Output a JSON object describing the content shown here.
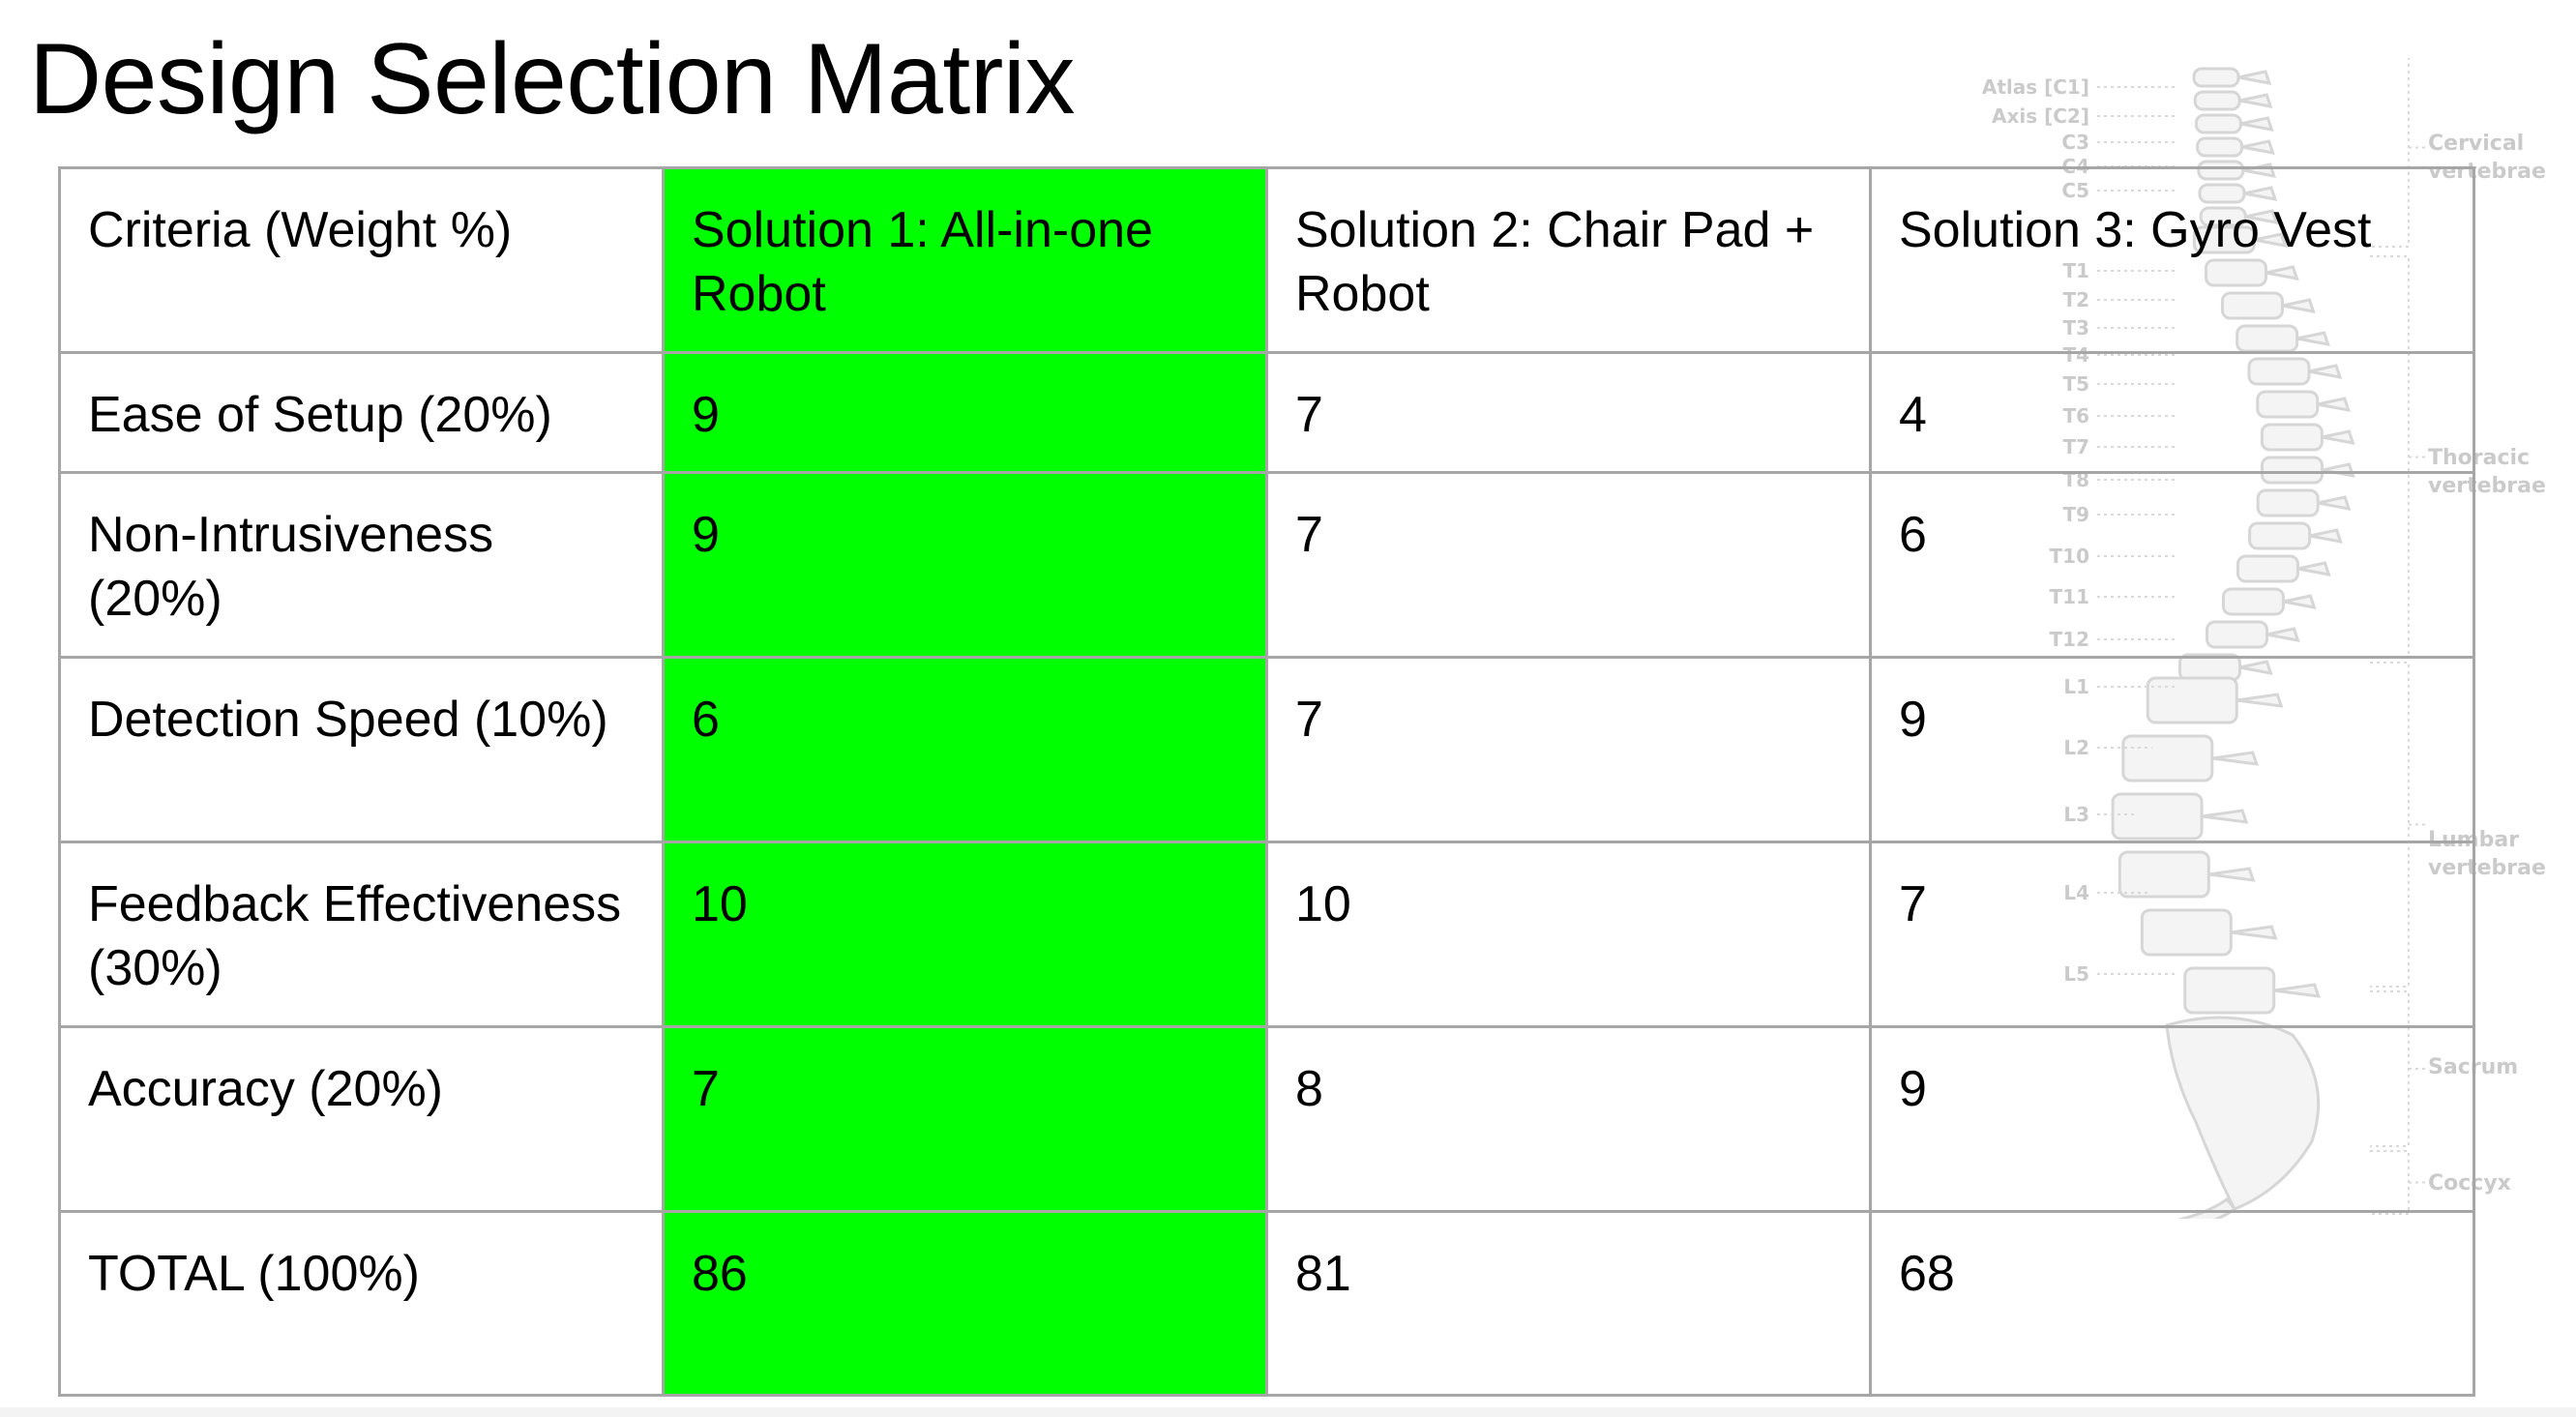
{
  "slide": {
    "title": "Design Selection Matrix"
  },
  "table": {
    "headers": [
      "Criteria (Weight %)",
      "Solution 1: All-in-one Robot",
      "Solution 2: Chair Pad + Robot",
      "Solution 3: Gyro Vest"
    ],
    "rows": [
      [
        "Ease of Setup (20%)",
        "9",
        "7",
        "4"
      ],
      [
        "Non-Intrusiveness (20%)",
        "9",
        "7",
        "6"
      ],
      [
        "Detection Speed (10%)",
        "6",
        "7",
        "9"
      ],
      [
        "Feedback Effectiveness (30%)",
        "10",
        "10",
        "7"
      ],
      [
        "Accuracy (20%)",
        "7",
        "8",
        "9"
      ],
      [
        "TOTAL (100%)",
        "86",
        "81",
        "68"
      ]
    ],
    "highlight_column": 1,
    "highlight_color": "#00ff00"
  },
  "spine_labels": {
    "cervical": [
      "Atlas [C1]",
      "Axis [C2]",
      "C3",
      "C4",
      "C5"
    ],
    "thoracic": [
      "T1",
      "T2",
      "T3",
      "T4",
      "T5",
      "T6",
      "T7",
      "T8",
      "T9",
      "T10",
      "T11",
      "T12"
    ],
    "lumbar": [
      "L1",
      "L2",
      "L3",
      "L4",
      "L5"
    ],
    "regions": [
      {
        "line1": "Cervical",
        "line2": "vertebrae"
      },
      {
        "line1": "Thoracic",
        "line2": "vertebrae"
      },
      {
        "line1": "Lumbar",
        "line2": "vertebrae"
      },
      {
        "line1": "Sacrum",
        "line2": ""
      },
      {
        "line1": "Coccyx",
        "line2": ""
      }
    ]
  },
  "colors": {
    "border": "#a6a6a6",
    "watermark_text": "#c8c8c8",
    "bone_stroke": "#d4d4d4"
  }
}
